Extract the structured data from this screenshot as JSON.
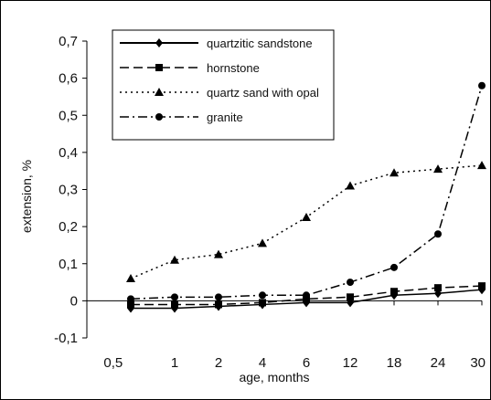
{
  "chart_data": {
    "type": "line",
    "title": "",
    "xlabel": "age, months",
    "ylabel": "extension, %",
    "categories": [
      "0,5",
      "1",
      "2",
      "4",
      "6",
      "12",
      "18",
      "24",
      "30"
    ],
    "y_tick_labels": [
      "-0,1",
      "0",
      "0,1",
      "0,2",
      "0,3",
      "0,4",
      "0,5",
      "0,6",
      "0,7"
    ],
    "ylim": [
      -0.1,
      0.7
    ],
    "grid": false,
    "legend_position": "top-center",
    "series": [
      {
        "name": "quartzitic sandstone",
        "marker": "diamond",
        "dash": "solid",
        "values": [
          -0.02,
          -0.02,
          -0.015,
          -0.01,
          -0.005,
          -0.005,
          0.015,
          0.02,
          0.03
        ]
      },
      {
        "name": "hornstone",
        "marker": "square",
        "dash": "dashed",
        "values": [
          -0.01,
          -0.01,
          -0.01,
          -0.005,
          0.005,
          0.01,
          0.025,
          0.035,
          0.04
        ]
      },
      {
        "name": "quartz sand with opal",
        "marker": "triangle",
        "dash": "dotted",
        "values": [
          0.06,
          0.11,
          0.125,
          0.155,
          0.225,
          0.31,
          0.345,
          0.355,
          0.365
        ]
      },
      {
        "name": "granite",
        "marker": "circle",
        "dash": "dashdot",
        "values": [
          0.005,
          0.01,
          0.01,
          0.015,
          0.015,
          0.05,
          0.09,
          0.18,
          0.58
        ]
      }
    ]
  }
}
